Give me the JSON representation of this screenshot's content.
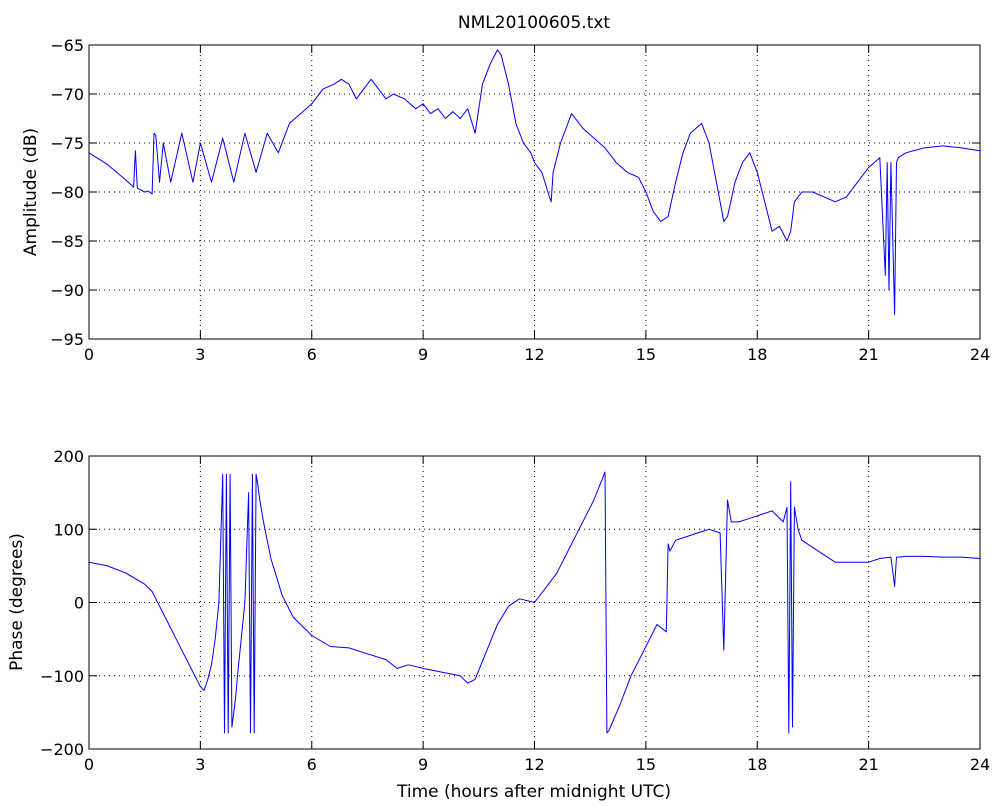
{
  "chart_data": [
    {
      "type": "line",
      "title": "NML20100605.txt",
      "xlabel": "",
      "ylabel": "Amplitude (dB)",
      "xlim": [
        0,
        24
      ],
      "ylim": [
        -95,
        -65
      ],
      "xticks": [
        0,
        3,
        6,
        9,
        12,
        15,
        18,
        21,
        24
      ],
      "yticks": [
        -95,
        -90,
        -85,
        -80,
        -75,
        -70,
        -65
      ],
      "xtick_labels": [
        "0",
        "3",
        "6",
        "9",
        "12",
        "15",
        "18",
        "21",
        "24"
      ],
      "ytick_labels": [
        "−95",
        "−90",
        "−85",
        "−80",
        "−75",
        "−70",
        "−65"
      ],
      "grid": true,
      "line_color": "#0000ff",
      "series": [
        {
          "x": [
            0,
            0.5,
            1.0,
            1.2,
            1.25,
            1.3,
            1.5,
            1.6,
            1.7,
            1.75,
            1.8,
            1.9,
            2.0,
            2.2,
            2.5,
            2.8,
            3.0,
            3.3,
            3.6,
            3.9,
            4.2,
            4.5,
            4.8,
            5.1,
            5.4,
            5.7,
            6.0,
            6.3,
            6.6,
            6.8,
            7.0,
            7.2,
            7.4,
            7.6,
            7.8,
            8.0,
            8.2,
            8.5,
            8.8,
            9.0,
            9.2,
            9.4,
            9.6,
            9.8,
            10.0,
            10.2,
            10.4,
            10.5,
            10.6,
            10.8,
            11.0,
            11.1,
            11.3,
            11.5,
            11.7,
            11.9,
            12.0,
            12.2,
            12.4,
            12.45,
            12.5,
            12.7,
            13.0,
            13.3,
            13.6,
            13.9,
            14.2,
            14.5,
            14.8,
            15.0,
            15.2,
            15.4,
            15.6,
            15.8,
            16.0,
            16.2,
            16.5,
            16.7,
            16.9,
            17.1,
            17.2,
            17.4,
            17.6,
            17.8,
            18.0,
            18.2,
            18.4,
            18.6,
            18.8,
            18.9,
            19.0,
            19.2,
            19.5,
            19.8,
            20.1,
            20.4,
            20.7,
            21.0,
            21.3,
            21.45,
            21.5,
            21.55,
            21.6,
            21.7,
            21.75,
            21.8,
            22.0,
            22.5,
            23.0,
            23.5,
            24.0
          ],
          "y": [
            -76,
            -77.2,
            -78.8,
            -79.5,
            -75.8,
            -79.6,
            -80,
            -79.9,
            -80.2,
            -74,
            -74.2,
            -79,
            -75,
            -79,
            -74,
            -79,
            -75,
            -79,
            -74.5,
            -79,
            -74,
            -78,
            -74,
            -76,
            -73,
            -72,
            -71,
            -69.5,
            -69,
            -68.5,
            -69,
            -70.5,
            -69.5,
            -68.5,
            -69.5,
            -70.5,
            -70,
            -70.5,
            -71.5,
            -71,
            -72,
            -71.5,
            -72.5,
            -71.8,
            -72.5,
            -71.5,
            -74,
            -71.5,
            -69,
            -67,
            -65.5,
            -66,
            -69,
            -73,
            -75,
            -76,
            -77,
            -78,
            -80.5,
            -81,
            -78,
            -75,
            -72,
            -73.5,
            -74.5,
            -75.5,
            -77,
            -78,
            -78.5,
            -80,
            -82,
            -83,
            -82.5,
            -79,
            -76,
            -74,
            -73,
            -75,
            -79,
            -83,
            -82.5,
            -79,
            -77,
            -76,
            -78,
            -81,
            -84,
            -83.5,
            -85,
            -84,
            -81,
            -80,
            -80,
            -80.5,
            -81,
            -80.5,
            -79,
            -77.5,
            -76.5,
            -88.5,
            -77,
            -90,
            -77,
            -92.5,
            -77,
            -76.5,
            -76,
            -75.5,
            -75.3,
            -75.5,
            -75.8
          ]
        }
      ]
    },
    {
      "type": "line",
      "title": "",
      "xlabel": "Time (hours after midnight UTC)",
      "ylabel": "Phase (degrees)",
      "xlim": [
        0,
        24
      ],
      "ylim": [
        -200,
        200
      ],
      "xticks": [
        0,
        3,
        6,
        9,
        12,
        15,
        18,
        21,
        24
      ],
      "yticks": [
        -200,
        -100,
        0,
        100,
        200
      ],
      "xtick_labels": [
        "0",
        "3",
        "6",
        "9",
        "12",
        "15",
        "18",
        "21",
        "24"
      ],
      "ytick_labels": [
        "−200",
        "−100",
        "0",
        "100",
        "200"
      ],
      "grid": true,
      "line_color": "#0000ff",
      "series": [
        {
          "x": [
            0,
            0.5,
            1.0,
            1.5,
            1.7,
            1.8,
            2.0,
            2.2,
            2.4,
            2.6,
            2.8,
            3.0,
            3.1,
            3.2,
            3.3,
            3.4,
            3.5,
            3.6,
            3.65,
            3.7,
            3.75,
            3.8,
            3.85,
            3.9,
            3.95,
            4.0,
            4.1,
            4.2,
            4.3,
            4.35,
            4.4,
            4.45,
            4.5,
            4.55,
            4.6,
            4.7,
            4.9,
            5.2,
            5.5,
            6.0,
            6.5,
            7.0,
            7.5,
            8.0,
            8.3,
            8.6,
            9.0,
            9.5,
            10.0,
            10.2,
            10.4,
            10.6,
            11.0,
            11.3,
            11.6,
            12.0,
            12.3,
            12.6,
            13.0,
            13.3,
            13.6,
            13.9,
            13.95,
            14.0,
            14.3,
            14.6,
            15.0,
            15.3,
            15.55,
            15.6,
            15.65,
            15.8,
            16.1,
            16.4,
            16.7,
            17.0,
            17.1,
            17.2,
            17.3,
            17.5,
            17.8,
            18.1,
            18.4,
            18.7,
            18.8,
            18.85,
            18.9,
            18.95,
            19.0,
            19.1,
            19.2,
            19.5,
            19.8,
            20.1,
            20.4,
            20.7,
            21.0,
            21.3,
            21.6,
            21.7,
            21.75,
            21.8,
            22.0,
            22.5,
            23.0,
            23.5,
            24.0
          ],
          "y": [
            55,
            50,
            40,
            25,
            15,
            5,
            -15,
            -35,
            -55,
            -75,
            -95,
            -115,
            -120,
            -105,
            -85,
            -50,
            0,
            175,
            -178,
            175,
            -178,
            175,
            -170,
            -150,
            -130,
            -100,
            -50,
            0,
            150,
            -178,
            175,
            -178,
            175,
            160,
            140,
            110,
            60,
            10,
            -20,
            -45,
            -60,
            -62,
            -70,
            -78,
            -90,
            -85,
            -90,
            -95,
            -100,
            -110,
            -105,
            -80,
            -30,
            -5,
            5,
            0,
            20,
            40,
            80,
            110,
            140,
            178,
            -178,
            -175,
            -140,
            -100,
            -60,
            -30,
            -40,
            80,
            70,
            85,
            90,
            95,
            100,
            95,
            -65,
            140,
            110,
            110,
            115,
            120,
            125,
            110,
            130,
            -178,
            165,
            -170,
            130,
            100,
            85,
            75,
            65,
            55,
            55,
            55,
            55,
            60,
            62,
            22,
            62,
            62,
            63,
            63,
            62,
            62,
            60
          ]
        }
      ]
    }
  ]
}
